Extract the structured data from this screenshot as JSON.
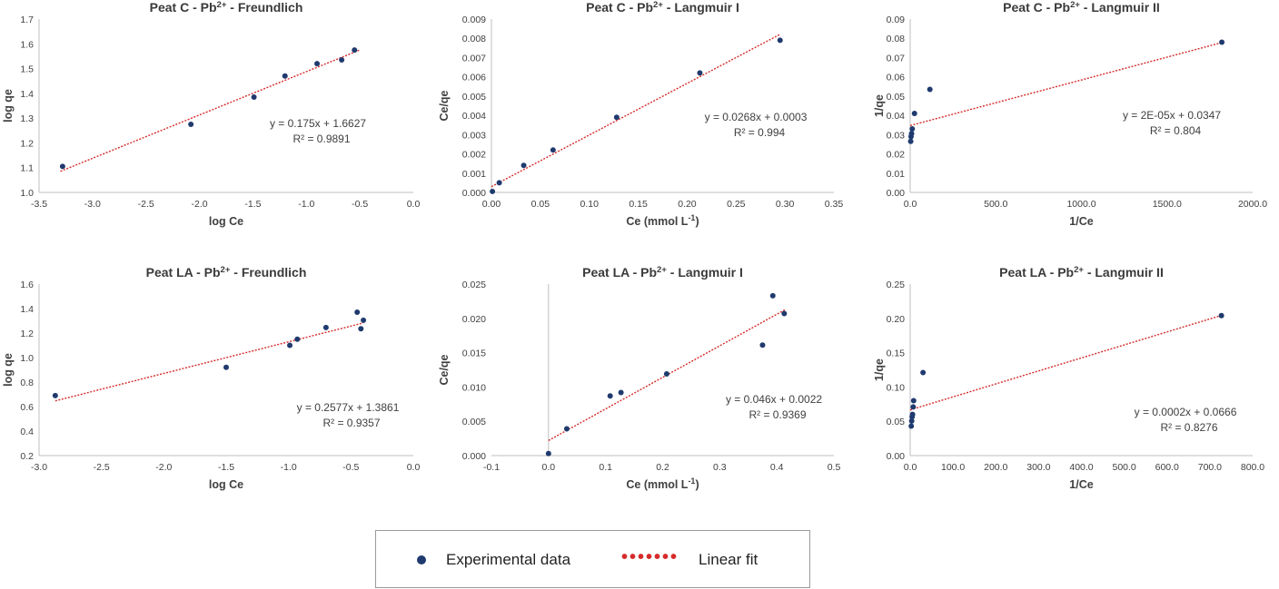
{
  "chart_data": [
    {
      "type": "scatter",
      "title_main": "Peat C - Pb",
      "title_sup": "2+",
      "title_rest": " - Freundlich",
      "xlabel": "log Ce",
      "xlabel_sup": "",
      "xlabel_tail": "",
      "ylabel": "log qe",
      "xlim": [
        -3.5,
        0.0
      ],
      "ylim": [
        1.0,
        1.7
      ],
      "xticks": [
        -3.5,
        -3.0,
        -2.5,
        -2.0,
        -1.5,
        -1.0,
        -0.5,
        0.0
      ],
      "xdec": 1,
      "yticks": [
        1.0,
        1.1,
        1.2,
        1.3,
        1.4,
        1.5,
        1.6,
        1.7
      ],
      "ydec": 1,
      "series": [
        {
          "name": "Experimental data",
          "points": [
            [
              -3.28,
              1.105
            ],
            [
              -2.08,
              1.275
            ],
            [
              -1.49,
              1.385
            ],
            [
              -1.2,
              1.47
            ],
            [
              -0.9,
              1.52
            ],
            [
              -0.67,
              1.535
            ],
            [
              -0.55,
              1.575
            ]
          ]
        },
        {
          "name": "Linear fit",
          "x": [
            -3.3,
            -0.5
          ],
          "slope": 0.175,
          "intercept": 1.6627
        }
      ],
      "equation": "y = 0.175x + 1.6627",
      "r2": "R² = 0.9891"
    },
    {
      "type": "scatter",
      "title_main": "Peat C - Pb",
      "title_sup": "2+",
      "title_rest": " - Langmuir I",
      "xlabel": "Ce (mmol L",
      "xlabel_sup": "-1",
      "xlabel_tail": ")",
      "ylabel": "Ce/qe",
      "xlim": [
        0,
        0.35
      ],
      "ylim": [
        0,
        0.009
      ],
      "xticks": [
        0.0,
        0.05,
        0.1,
        0.15,
        0.2,
        0.25,
        0.3,
        0.35
      ],
      "xdec": 2,
      "yticks": [
        0.0,
        0.001,
        0.002,
        0.003,
        0.004,
        0.005,
        0.006,
        0.007,
        0.008,
        0.009
      ],
      "ydec": 3,
      "series": [
        {
          "name": "Experimental data",
          "points": [
            [
              0.001,
              5e-05
            ],
            [
              0.008,
              0.0005
            ],
            [
              0.033,
              0.0014
            ],
            [
              0.063,
              0.0022
            ],
            [
              0.128,
              0.0039
            ],
            [
              0.213,
              0.0062
            ],
            [
              0.295,
              0.0079
            ]
          ]
        },
        {
          "name": "Linear fit",
          "x": [
            0.0,
            0.295
          ],
          "slope": 0.0268,
          "intercept": 0.0003
        }
      ],
      "equation": "y = 0.0268x + 0.0003",
      "r2": "R² = 0.994"
    },
    {
      "type": "scatter",
      "title_main": "Peat C - Pb",
      "title_sup": "2+",
      "title_rest": "  - Langmuir II",
      "xlabel": "1/Ce",
      "xlabel_sup": "",
      "xlabel_tail": "",
      "ylabel": "1/qe",
      "xlim": [
        0,
        2000
      ],
      "ylim": [
        0,
        0.09
      ],
      "xticks": [
        0,
        500,
        1000,
        1500,
        2000
      ],
      "xdec": 1,
      "yticks": [
        0.0,
        0.01,
        0.02,
        0.03,
        0.04,
        0.05,
        0.06,
        0.07,
        0.08,
        0.09
      ],
      "ydec": 2,
      "series": [
        {
          "name": "Experimental data",
          "points": [
            [
              3,
              0.0265
            ],
            [
              5,
              0.029
            ],
            [
              8,
              0.0305
            ],
            [
              12,
              0.033
            ],
            [
              25,
              0.041
            ],
            [
              115,
              0.0535
            ],
            [
              1820,
              0.078
            ]
          ]
        },
        {
          "name": "Linear fit",
          "x": [
            0,
            1820
          ],
          "slope": 2.368e-05,
          "intercept": 0.0347
        }
      ],
      "equation": "y = 2E-05x + 0.0347",
      "r2": "R² = 0.804"
    },
    {
      "type": "scatter",
      "title_main": "Peat LA - Pb",
      "title_sup": "2+",
      "title_rest": " - Freundlich",
      "xlabel": "log Ce",
      "xlabel_sup": "",
      "xlabel_tail": "",
      "ylabel": "log qe",
      "xlim": [
        -3.0,
        0.0
      ],
      "ylim": [
        0.2,
        1.6
      ],
      "xticks": [
        -3.0,
        -2.5,
        -2.0,
        -1.5,
        -1.0,
        -0.5,
        0.0
      ],
      "xdec": 1,
      "yticks": [
        0.2,
        0.4,
        0.6,
        0.8,
        1.0,
        1.2,
        1.4,
        1.6
      ],
      "ydec": 1,
      "series": [
        {
          "name": "Experimental data",
          "points": [
            [
              -2.87,
              0.69
            ],
            [
              -1.5,
              0.92
            ],
            [
              -0.99,
              1.1
            ],
            [
              -0.93,
              1.15
            ],
            [
              -0.7,
              1.245
            ],
            [
              -0.45,
              1.37
            ],
            [
              -0.42,
              1.235
            ],
            [
              -0.4,
              1.305
            ]
          ]
        },
        {
          "name": "Linear fit",
          "x": [
            -2.87,
            -0.4
          ],
          "slope": 0.2577,
          "intercept": 1.3861
        }
      ],
      "equation": "y = 0.2577x + 1.3861",
      "r2": "R² = 0.9357"
    },
    {
      "type": "scatter",
      "title_main": "Peat LA - Pb",
      "title_sup": "2+",
      "title_rest": " - Langmuir I",
      "xlabel": "Ce (mmol L",
      "xlabel_sup": "-1",
      "xlabel_tail": ")",
      "ylabel": "Ce/qe",
      "xlim": [
        -0.1,
        0.5
      ],
      "ylim": [
        0,
        0.025
      ],
      "xticks": [
        -0.1,
        0.0,
        0.1,
        0.2,
        0.3,
        0.4,
        0.5
      ],
      "xdec": 1,
      "yticks": [
        0.0,
        0.005,
        0.01,
        0.015,
        0.02,
        0.025
      ],
      "ydec": 3,
      "series": [
        {
          "name": "Experimental data",
          "points": [
            [
              0.0,
              0.0003
            ],
            [
              0.032,
              0.0039
            ],
            [
              0.108,
              0.0087
            ],
            [
              0.127,
              0.0092
            ],
            [
              0.207,
              0.0119
            ],
            [
              0.375,
              0.0161
            ],
            [
              0.393,
              0.0233
            ],
            [
              0.413,
              0.0207
            ]
          ]
        },
        {
          "name": "Linear fit",
          "x": [
            0.0,
            0.415
          ],
          "slope": 0.046,
          "intercept": 0.0022
        }
      ],
      "equation": "y = 0.046x + 0.0022",
      "r2": "R² = 0.9369"
    },
    {
      "type": "scatter",
      "title_main": "Peat LA - Pb",
      "title_sup": "2+",
      "title_rest": "  - Langmuir II",
      "xlabel": "1/Ce",
      "xlabel_sup": "",
      "xlabel_tail": "",
      "ylabel": "1/qe",
      "xlim": [
        0,
        800
      ],
      "ylim": [
        0,
        0.25
      ],
      "xticks": [
        0,
        100,
        200,
        300,
        400,
        500,
        600,
        700,
        800
      ],
      "xdec": 1,
      "yticks": [
        0.0,
        0.05,
        0.1,
        0.15,
        0.2,
        0.25
      ],
      "ydec": 2,
      "series": [
        {
          "name": "Experimental data",
          "points": [
            [
              2.5,
              0.043
            ],
            [
              3.5,
              0.0505
            ],
            [
              4.5,
              0.0565
            ],
            [
              5.5,
              0.06
            ],
            [
              7,
              0.071
            ],
            [
              8,
              0.08
            ],
            [
              30,
              0.121
            ],
            [
              727,
              0.204
            ]
          ]
        },
        {
          "name": "Linear fit",
          "x": [
            0,
            727
          ],
          "slope": 0.0001894,
          "intercept": 0.0666
        }
      ],
      "equation": "y = 0.0002x + 0.0666",
      "r2": "R² = 0.8276"
    }
  ],
  "legend": {
    "experimental_label": "Experimental data",
    "fit_label": "Linear fit",
    "point_color": "#1f3a6e",
    "fit_color": "#d62b2b"
  }
}
